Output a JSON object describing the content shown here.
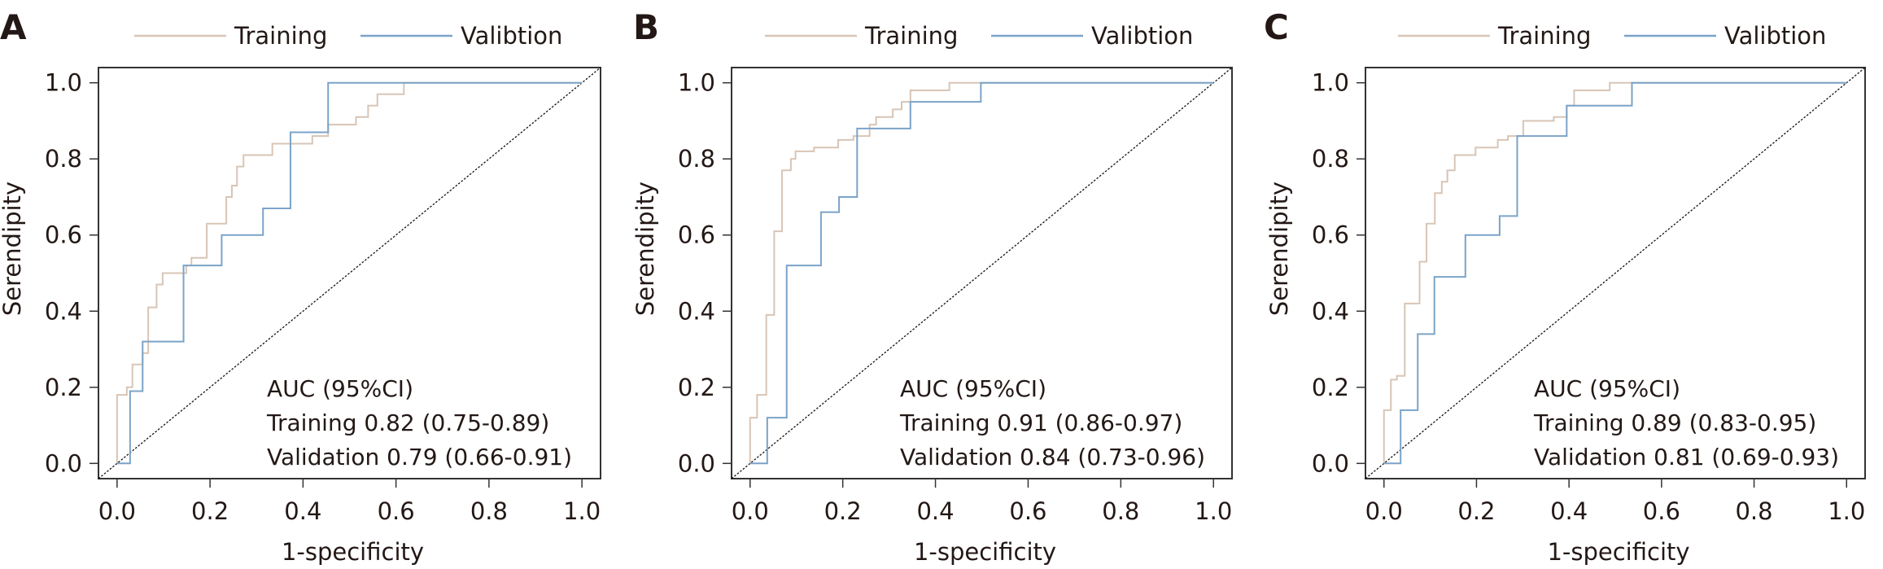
{
  "chart_data": [
    {
      "type": "line",
      "panel": "A",
      "legend": [
        {
          "name": "Training",
          "color": "#d8c5b6"
        },
        {
          "name": "Valibtion",
          "color": "#7ba3c8"
        }
      ],
      "legend_position": "top",
      "xlabel": "1-specificity",
      "ylabel": "Serendipity",
      "xlim": [
        0,
        1
      ],
      "ylim": [
        0,
        1
      ],
      "xticks": [
        "0.0",
        "0.2",
        "0.4",
        "0.6",
        "0.8",
        "1.0"
      ],
      "yticks": [
        "0.0",
        "0.2",
        "0.4",
        "0.6",
        "0.8",
        "1.0"
      ],
      "grid": false,
      "reference_line": "diagonal",
      "annotation": [
        "AUC (95%CI)",
        "Training 0.82 (0.75-0.89)",
        "Validation 0.79 (0.66-0.91)"
      ],
      "series": [
        {
          "name": "Training",
          "auc": 0.82,
          "ci": [
            0.75,
            0.89
          ],
          "x": [
            0,
            0.021,
            0.033,
            0.055,
            0.067,
            0.085,
            0.098,
            0.149,
            0.16,
            0.193,
            0.235,
            0.247,
            0.258,
            0.272,
            0.334,
            0.42,
            0.454,
            0.514,
            0.54,
            0.56,
            0.617,
            1.0
          ],
          "y": [
            0.18,
            0.2,
            0.26,
            0.29,
            0.41,
            0.47,
            0.5,
            0.52,
            0.54,
            0.63,
            0.7,
            0.73,
            0.78,
            0.81,
            0.84,
            0.86,
            0.89,
            0.91,
            0.94,
            0.97,
            1.0,
            1.0
          ]
        },
        {
          "name": "Validation",
          "auc": 0.79,
          "ci": [
            0.66,
            0.91
          ],
          "x": [
            0,
            0.028,
            0.055,
            0.143,
            0.225,
            0.314,
            0.373,
            0.454,
            1.0
          ],
          "y": [
            0.0,
            0.19,
            0.32,
            0.52,
            0.6,
            0.67,
            0.87,
            1.0,
            1.0
          ]
        }
      ]
    },
    {
      "type": "line",
      "panel": "B",
      "legend": [
        {
          "name": "Training",
          "color": "#d8c5b6"
        },
        {
          "name": "Valibtion",
          "color": "#7ba3c8"
        }
      ],
      "legend_position": "top",
      "xlabel": "1-specificity",
      "ylabel": "Serendipity",
      "xlim": [
        0,
        1
      ],
      "ylim": [
        0,
        1
      ],
      "xticks": [
        "0.0",
        "0.2",
        "0.4",
        "0.6",
        "0.8",
        "1.0"
      ],
      "yticks": [
        "0.0",
        "0.2",
        "0.4",
        "0.6",
        "0.8",
        "1.0"
      ],
      "grid": false,
      "reference_line": "diagonal",
      "annotation": [
        "AUC (95%CI)",
        "Training 0.91 (0.86-0.97)",
        "Validation 0.84 (0.73-0.96)"
      ],
      "series": [
        {
          "name": "Training",
          "auc": 0.91,
          "ci": [
            0.86,
            0.97
          ],
          "x": [
            0,
            0.015,
            0.035,
            0.052,
            0.069,
            0.088,
            0.098,
            0.138,
            0.19,
            0.223,
            0.258,
            0.272,
            0.308,
            0.327,
            0.346,
            0.43,
            1.0
          ],
          "y": [
            0.12,
            0.18,
            0.39,
            0.61,
            0.77,
            0.8,
            0.82,
            0.83,
            0.85,
            0.86,
            0.89,
            0.91,
            0.93,
            0.95,
            0.98,
            1.0,
            1.0
          ]
        },
        {
          "name": "Validation",
          "auc": 0.84,
          "ci": [
            0.73,
            0.96
          ],
          "x": [
            0,
            0.037,
            0.079,
            0.153,
            0.192,
            0.231,
            0.346,
            0.498,
            1.0
          ],
          "y": [
            0.0,
            0.12,
            0.52,
            0.66,
            0.7,
            0.88,
            0.95,
            1.0,
            1.0
          ]
        }
      ]
    },
    {
      "type": "line",
      "panel": "C",
      "legend": [
        {
          "name": "Training",
          "color": "#d8c5b6"
        },
        {
          "name": "Valibtion",
          "color": "#7ba3c8"
        }
      ],
      "legend_position": "top",
      "xlabel": "1-specificity",
      "ylabel": "Serendipity",
      "xlim": [
        0,
        1
      ],
      "ylim": [
        0,
        1
      ],
      "xticks": [
        "0.0",
        "0.2",
        "0.4",
        "0.6",
        "0.8",
        "1.0"
      ],
      "yticks": [
        "0.0",
        "0.2",
        "0.4",
        "0.6",
        "0.8",
        "1.0"
      ],
      "grid": false,
      "reference_line": "diagonal",
      "annotation": [
        "AUC (95%CI)",
        "Training 0.89 (0.83-0.95)",
        "Validation 0.81 (0.69-0.93)"
      ],
      "series": [
        {
          "name": "Training",
          "auc": 0.89,
          "ci": [
            0.83,
            0.95
          ],
          "x": [
            0,
            0.015,
            0.028,
            0.045,
            0.077,
            0.092,
            0.11,
            0.125,
            0.137,
            0.153,
            0.198,
            0.246,
            0.268,
            0.301,
            0.367,
            0.395,
            0.411,
            0.488,
            1.0
          ],
          "y": [
            0.14,
            0.22,
            0.23,
            0.42,
            0.53,
            0.63,
            0.71,
            0.74,
            0.77,
            0.81,
            0.83,
            0.85,
            0.86,
            0.9,
            0.91,
            0.94,
            0.98,
            1.0,
            1.0
          ]
        },
        {
          "name": "Validation",
          "auc": 0.81,
          "ci": [
            0.69,
            0.93
          ],
          "x": [
            0,
            0.036,
            0.073,
            0.109,
            0.176,
            0.25,
            0.288,
            0.395,
            0.536,
            1.0
          ],
          "y": [
            0.0,
            0.14,
            0.34,
            0.49,
            0.6,
            0.65,
            0.86,
            0.94,
            1.0,
            1.0
          ]
        }
      ]
    }
  ]
}
